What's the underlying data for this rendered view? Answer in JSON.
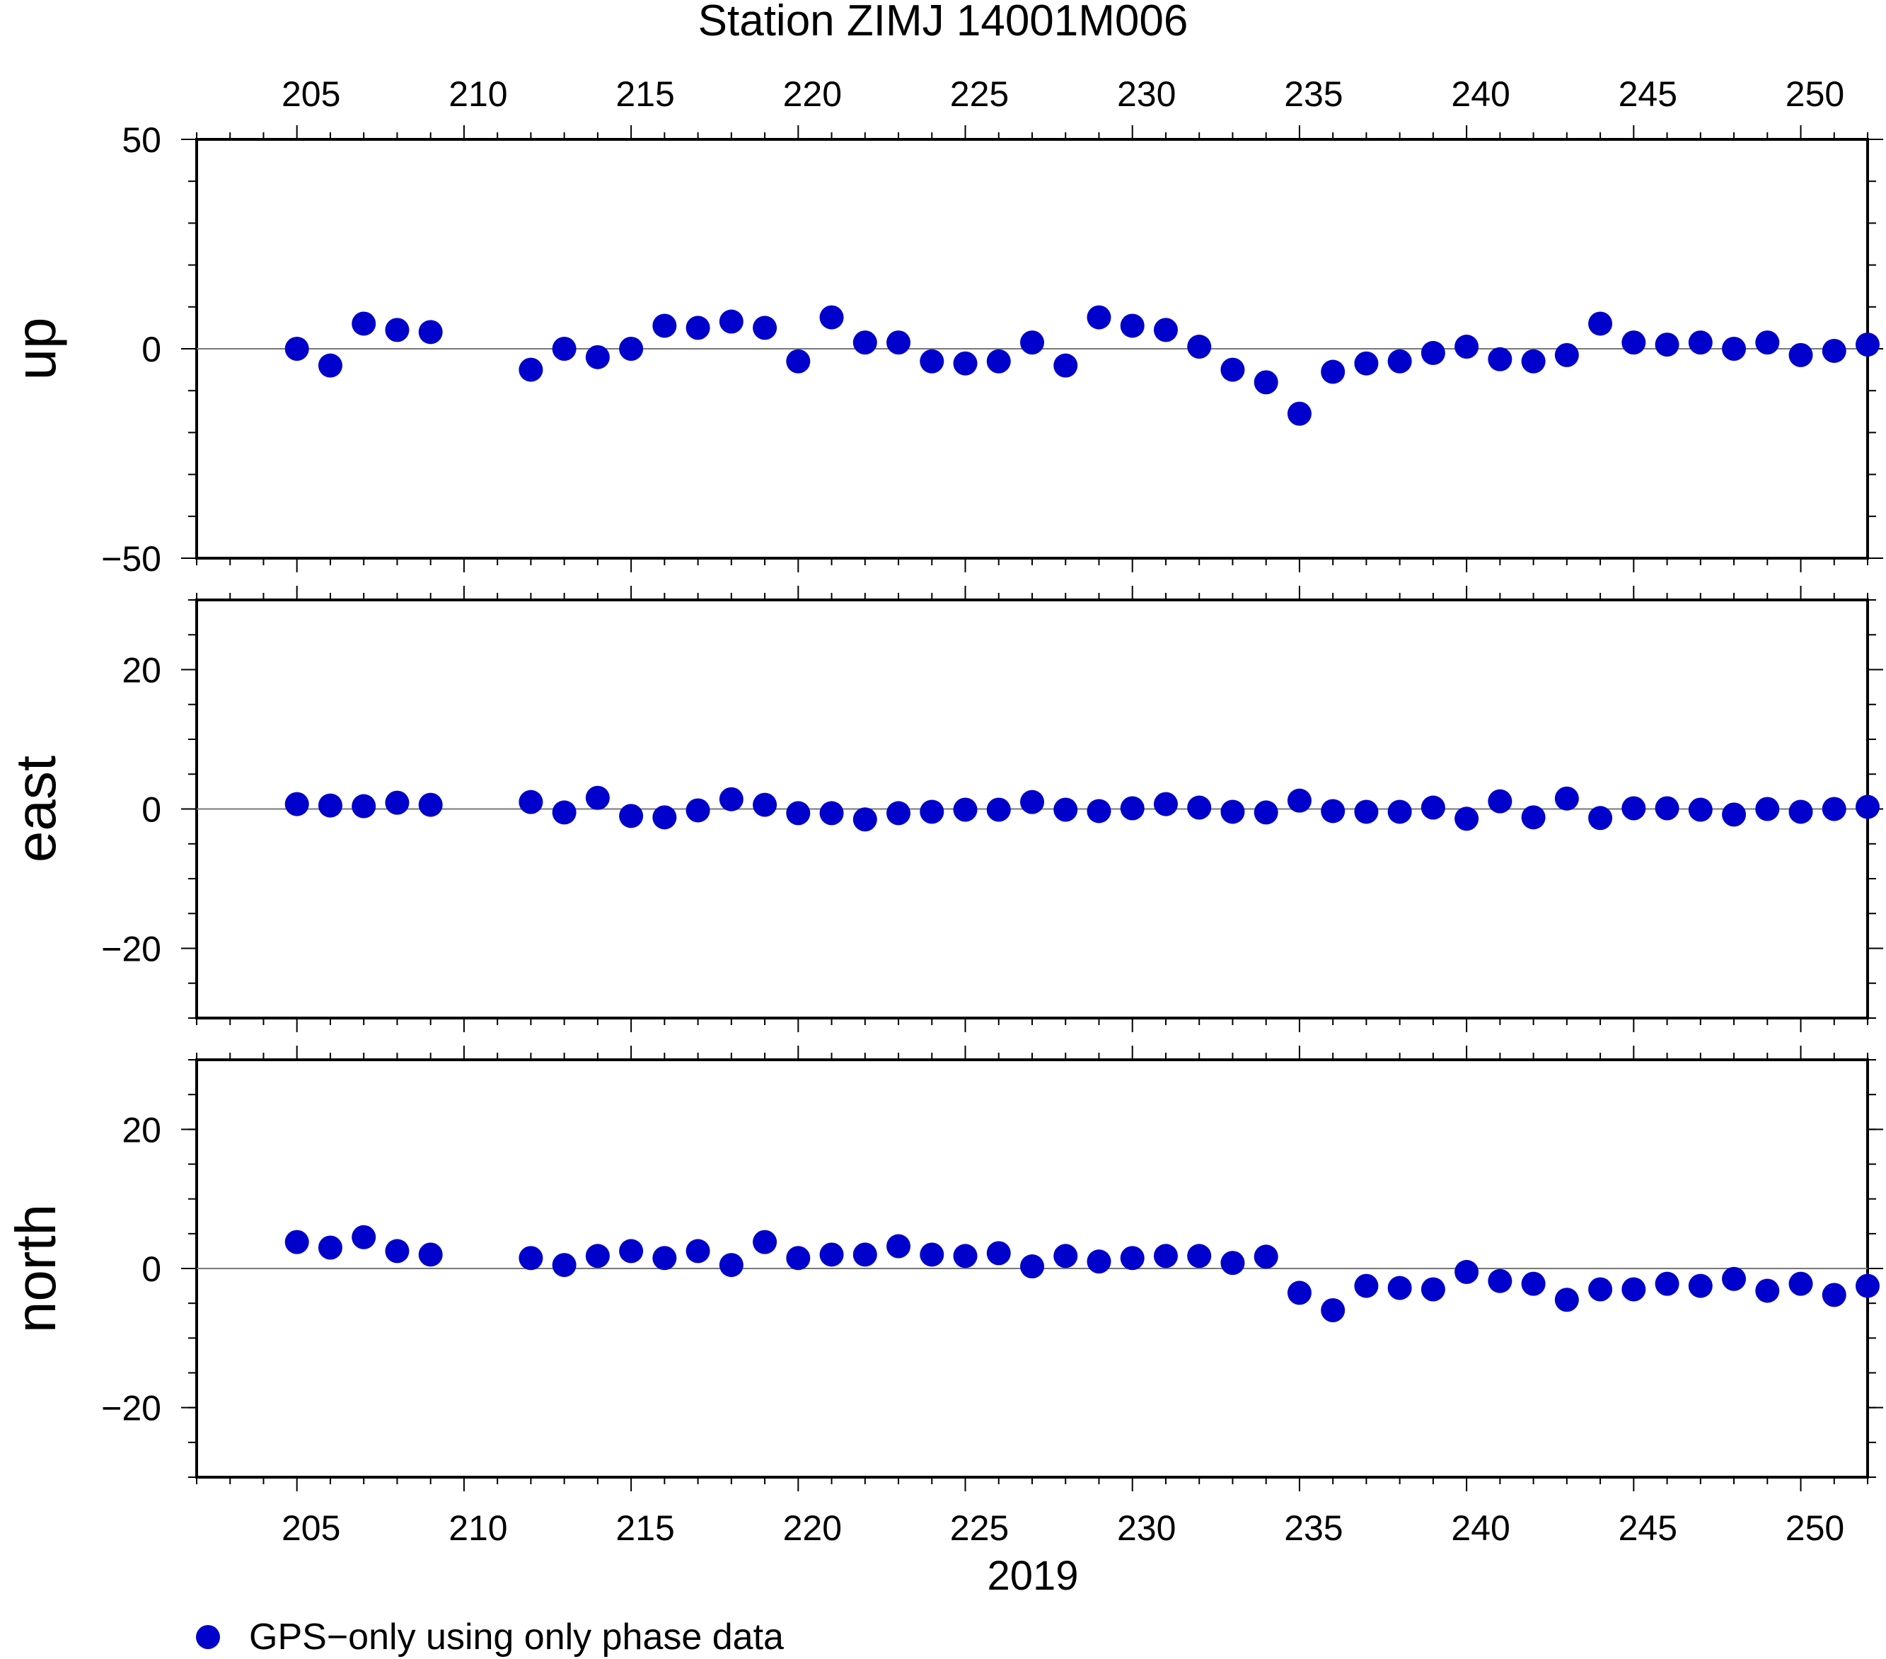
{
  "chart_data": {
    "type": "scatter",
    "title": "Station ZIMJ 14001M006",
    "xlabel": "2019",
    "x_ticks": [
      205,
      210,
      215,
      220,
      225,
      230,
      235,
      240,
      245,
      250
    ],
    "xlim": [
      202,
      252
    ],
    "legend": {
      "placement": "bottom-left",
      "label": "GPS−only using only phase data"
    },
    "marker_color": "#0000cc",
    "panels": [
      {
        "name": "up",
        "ylabel": "up",
        "ylim": [
          -50,
          50
        ],
        "y_ticks": [
          {
            "value": 50,
            "label": "50"
          },
          {
            "value": 0,
            "label": "0"
          },
          {
            "value": -50,
            "label": "−50"
          }
        ],
        "x": [
          205,
          206,
          207,
          208,
          209,
          212,
          213,
          214,
          215,
          216,
          217,
          218,
          219,
          220,
          221,
          222,
          223,
          224,
          225,
          226,
          227,
          228,
          229,
          230,
          231,
          232,
          233,
          234,
          235,
          236,
          237,
          238,
          239,
          240,
          241,
          242,
          243,
          244,
          245,
          246,
          247,
          248,
          249,
          250,
          251,
          252
        ],
        "y": [
          0,
          -4,
          6,
          4.5,
          4,
          -5,
          0,
          -2,
          0,
          5.5,
          5,
          6.5,
          5,
          -3,
          7.5,
          1.5,
          1.5,
          -3,
          -3.5,
          -3,
          1.5,
          -4,
          7.5,
          5.5,
          4.5,
          0.5,
          -5,
          -8,
          -15.5,
          -5.5,
          -3.5,
          -3,
          -1,
          0.5,
          -2.5,
          -3,
          -1.5,
          6,
          1.5,
          1,
          1.5,
          0,
          1.5,
          -1.5,
          -0.5,
          1
        ]
      },
      {
        "name": "east",
        "ylabel": "east",
        "ylim": [
          -30,
          30
        ],
        "y_ticks": [
          {
            "value": 20,
            "label": "20"
          },
          {
            "value": 0,
            "label": "0"
          },
          {
            "value": -20,
            "label": "−20"
          }
        ],
        "x": [
          205,
          206,
          207,
          208,
          209,
          212,
          213,
          214,
          215,
          216,
          217,
          218,
          219,
          220,
          221,
          222,
          223,
          224,
          225,
          226,
          227,
          228,
          229,
          230,
          231,
          232,
          233,
          234,
          235,
          236,
          237,
          238,
          239,
          240,
          241,
          242,
          243,
          244,
          245,
          246,
          247,
          248,
          249,
          250,
          251,
          252
        ],
        "y": [
          0.7,
          0.5,
          0.4,
          0.9,
          0.6,
          1,
          -0.5,
          1.6,
          -1,
          -1.2,
          -0.2,
          1.4,
          0.6,
          -0.6,
          -0.6,
          -1.5,
          -0.6,
          -0.4,
          -0.1,
          -0.1,
          1,
          -0.1,
          -0.3,
          0.1,
          0.7,
          0.2,
          -0.4,
          -0.5,
          1.2,
          -0.3,
          -0.4,
          -0.4,
          0.2,
          -1.4,
          1.1,
          -1.2,
          1.5,
          -1.3,
          0.1,
          0.1,
          -0.1,
          -0.8,
          0,
          -0.4,
          0,
          0.3
        ]
      },
      {
        "name": "north",
        "ylabel": "north",
        "ylim": [
          -30,
          30
        ],
        "y_ticks": [
          {
            "value": 20,
            "label": "20"
          },
          {
            "value": 0,
            "label": "0"
          },
          {
            "value": -20,
            "label": "−20"
          }
        ],
        "x": [
          205,
          206,
          207,
          208,
          209,
          212,
          213,
          214,
          215,
          216,
          217,
          218,
          219,
          220,
          221,
          222,
          223,
          224,
          225,
          226,
          227,
          228,
          229,
          230,
          231,
          232,
          233,
          234,
          235,
          236,
          237,
          238,
          239,
          240,
          241,
          242,
          243,
          244,
          245,
          246,
          247,
          248,
          249,
          250,
          251,
          252
        ],
        "y": [
          3.8,
          3,
          4.5,
          2.5,
          2,
          1.5,
          0.5,
          1.8,
          2.5,
          1.5,
          2.5,
          0.5,
          3.8,
          1.5,
          2,
          2,
          3.2,
          2,
          1.8,
          2.2,
          0.3,
          1.8,
          1,
          1.5,
          1.8,
          1.8,
          0.8,
          1.7,
          -3.5,
          -6,
          -2.5,
          -2.8,
          -3,
          -0.5,
          -1.8,
          -2.2,
          -4.5,
          -3,
          -3,
          -2.2,
          -2.5,
          -1.5,
          -3.2,
          -2.2,
          -3.8,
          -2.5
        ]
      }
    ]
  }
}
